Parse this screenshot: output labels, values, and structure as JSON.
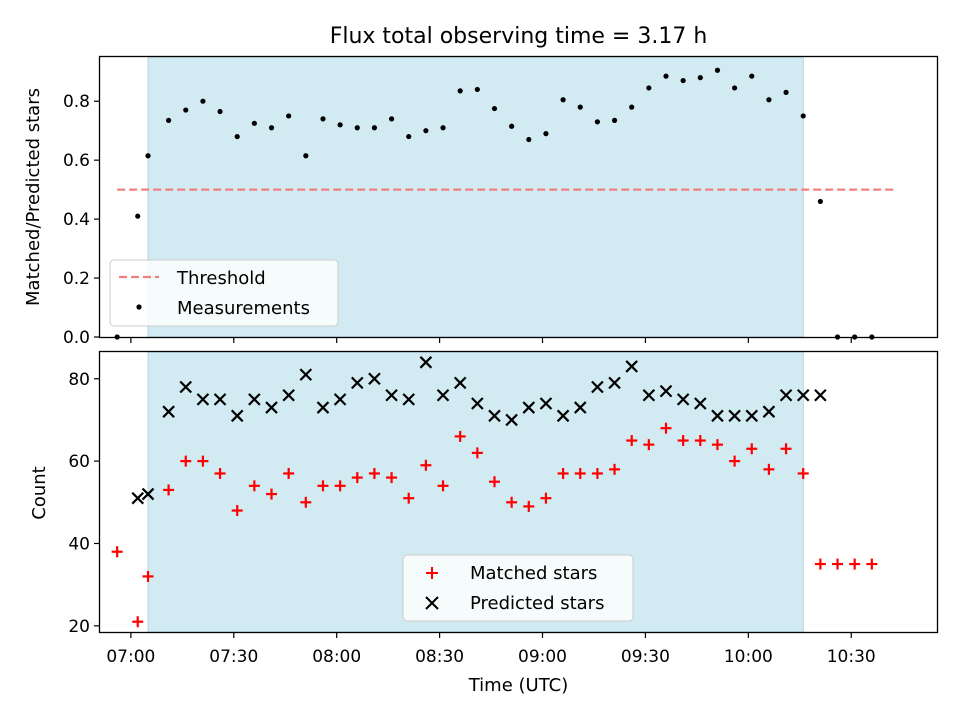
{
  "chart_data": [
    {
      "type": "scatter",
      "title": "Flux total observing time = 3.17 h",
      "ylabel": "Matched/Predicted stars",
      "xlabel": "",
      "xlim": [
        "06:51",
        "10:55"
      ],
      "ylim": [
        0,
        0.95
      ],
      "yticks": [
        0.0,
        0.2,
        0.4,
        0.6,
        0.8
      ],
      "ytick_labels": [
        "0.0",
        "0.2",
        "0.4",
        "0.6",
        "0.8"
      ],
      "shaded_interval": [
        "07:05",
        "10:16"
      ],
      "shade_color": "#add8e6",
      "legend_position": "lower-left",
      "threshold": {
        "name": "Threshold",
        "value": 0.5,
        "x": [
          "06:56",
          "10:43"
        ],
        "color": "#f08080",
        "style": "dashed"
      },
      "series": [
        {
          "name": "Measurements",
          "color": "#000000",
          "marker": "dot",
          "x": [
            "06:56",
            "07:02",
            "07:05",
            "07:11",
            "07:16",
            "07:21",
            "07:26",
            "07:31",
            "07:36",
            "07:41",
            "07:46",
            "07:51",
            "07:56",
            "08:01",
            "08:06",
            "08:11",
            "08:16",
            "08:21",
            "08:26",
            "08:31",
            "08:36",
            "08:41",
            "08:46",
            "08:51",
            "08:56",
            "09:01",
            "09:06",
            "09:11",
            "09:16",
            "09:21",
            "09:26",
            "09:31",
            "09:36",
            "09:41",
            "09:46",
            "09:51",
            "09:56",
            "10:01",
            "10:06",
            "10:11",
            "10:16",
            "10:21",
            "10:26",
            "10:31",
            "10:36"
          ],
          "y": [
            0.0,
            0.41,
            0.615,
            0.735,
            0.77,
            0.8,
            0.765,
            0.68,
            0.725,
            0.71,
            0.75,
            0.615,
            0.74,
            0.72,
            0.71,
            0.71,
            0.74,
            0.68,
            0.7,
            0.71,
            0.835,
            0.84,
            0.775,
            0.715,
            0.67,
            0.69,
            0.805,
            0.78,
            0.73,
            0.735,
            0.78,
            0.845,
            0.885,
            0.87,
            0.88,
            0.905,
            0.845,
            0.885,
            0.805,
            0.83,
            0.75,
            0.46,
            0.0,
            0.0,
            0.0
          ]
        }
      ]
    },
    {
      "type": "scatter",
      "title": "",
      "ylabel": "Count",
      "xlabel": "Time (UTC)",
      "xlim": [
        "06:51",
        "10:55"
      ],
      "ylim": [
        18.5,
        86.5
      ],
      "yticks": [
        20,
        40,
        60,
        80
      ],
      "ytick_labels": [
        "20",
        "40",
        "60",
        "80"
      ],
      "xticks": [
        "07:00",
        "07:30",
        "08:00",
        "08:30",
        "09:00",
        "09:30",
        "10:00",
        "10:30"
      ],
      "xtick_labels": [
        "07:00",
        "07:30",
        "08:00",
        "08:30",
        "09:00",
        "09:30",
        "10:00",
        "10:30"
      ],
      "shaded_interval": [
        "07:05",
        "10:16"
      ],
      "shade_color": "#add8e6",
      "legend_position": "lower-center",
      "series": [
        {
          "name": "Matched stars",
          "color": "#ff0000",
          "marker": "plus",
          "x": [
            "06:56",
            "07:02",
            "07:05",
            "07:11",
            "07:16",
            "07:21",
            "07:26",
            "07:31",
            "07:36",
            "07:41",
            "07:46",
            "07:51",
            "07:56",
            "08:01",
            "08:06",
            "08:11",
            "08:16",
            "08:21",
            "08:26",
            "08:31",
            "08:36",
            "08:41",
            "08:46",
            "08:51",
            "08:56",
            "09:01",
            "09:06",
            "09:11",
            "09:16",
            "09:21",
            "09:26",
            "09:31",
            "09:36",
            "09:41",
            "09:46",
            "09:51",
            "09:56",
            "10:01",
            "10:06",
            "10:11",
            "10:16",
            "10:21",
            "10:26",
            "10:31",
            "10:36"
          ],
          "y": [
            38,
            21,
            32,
            53,
            60,
            60,
            57,
            48,
            54,
            52,
            57,
            50,
            54,
            54,
            56,
            57,
            56,
            51,
            59,
            54,
            66,
            62,
            55,
            50,
            49,
            51,
            57,
            57,
            57,
            58,
            65,
            64,
            68,
            65,
            65,
            64,
            60,
            63,
            58,
            63,
            57,
            35,
            35,
            35,
            35
          ]
        },
        {
          "name": "Predicted stars",
          "color": "#000000",
          "marker": "x",
          "x": [
            "07:02",
            "07:05",
            "07:11",
            "07:16",
            "07:21",
            "07:26",
            "07:31",
            "07:36",
            "07:41",
            "07:46",
            "07:51",
            "07:56",
            "08:01",
            "08:06",
            "08:11",
            "08:16",
            "08:21",
            "08:26",
            "08:31",
            "08:36",
            "08:41",
            "08:46",
            "08:51",
            "08:56",
            "09:01",
            "09:06",
            "09:11",
            "09:16",
            "09:21",
            "09:26",
            "09:31",
            "09:36",
            "09:41",
            "09:46",
            "09:51",
            "09:56",
            "10:01",
            "10:06",
            "10:11",
            "10:16",
            "10:21"
          ],
          "y": [
            51,
            52,
            72,
            78,
            75,
            75,
            71,
            75,
            73,
            76,
            81,
            73,
            75,
            79,
            80,
            76,
            75,
            84,
            76,
            79,
            74,
            71,
            70,
            73,
            74,
            71,
            73,
            78,
            79,
            83,
            76,
            77,
            75,
            74,
            71,
            71,
            71,
            72,
            76,
            76,
            76
          ]
        }
      ]
    }
  ]
}
